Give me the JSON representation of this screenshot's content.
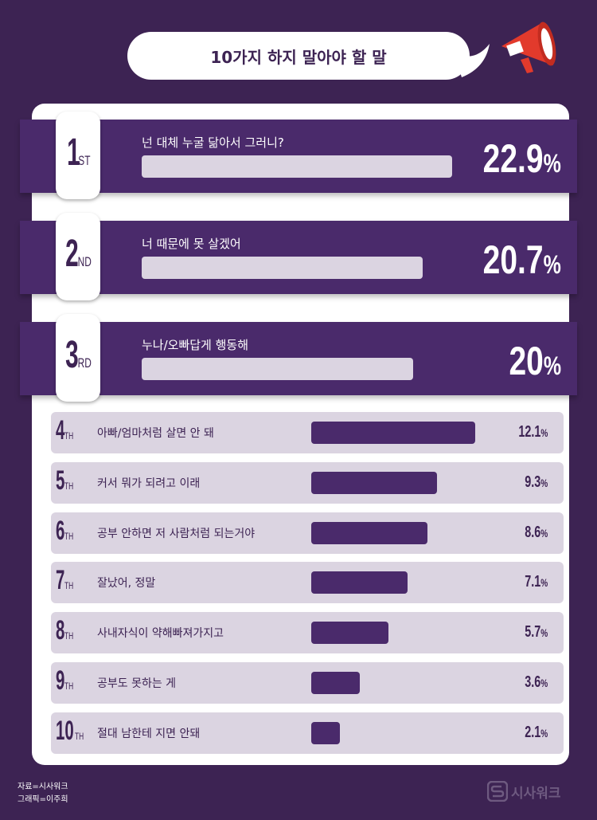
{
  "title": "10가지 하지 말아야 할 말",
  "chart_data": {
    "type": "bar",
    "title": "10가지 하지 말아야 할 말",
    "categories": [
      "넌 대체 누굴 닮아서 그러니?",
      "너 때문에 못 살겠어",
      "누나/오빠답게 행동해",
      "아빠/엄마처럼 살면 안 돼",
      "커서 뭐가 되려고 이래",
      "공부 안하면 저 사람처럼 되는거야",
      "잘났어, 정말",
      "사내자식이 약해빠져가지고",
      "공부도 못하는 게",
      "절대 남한테 지면 안돼"
    ],
    "values": [
      22.9,
      20.7,
      20,
      12.1,
      9.3,
      8.6,
      7.1,
      5.7,
      3.6,
      2.1
    ],
    "unit": "%",
    "colors": {
      "background": "#3d2353",
      "bar_dark": "#4a2a6b",
      "bar_light": "#dbd4e1",
      "accent_red": "#e23a2c"
    }
  },
  "items": [
    {
      "rank_num": "1",
      "rank_suffix": "ST",
      "label": "넌 대체 누굴 닮아서 그러니?",
      "value": 22.9,
      "value_text": "22.9",
      "unit": "%"
    },
    {
      "rank_num": "2",
      "rank_suffix": "ND",
      "label": "너 때문에 못 살겠어",
      "value": 20.7,
      "value_text": "20.7",
      "unit": "%"
    },
    {
      "rank_num": "3",
      "rank_suffix": "RD",
      "label": "누나/오빠답게 행동해",
      "value": 20,
      "value_text": "20",
      "unit": "%"
    },
    {
      "rank_num": "4",
      "rank_suffix": "TH",
      "label": "아빠/엄마처럼 살면 안 돼",
      "value": 12.1,
      "value_text": "12.1",
      "unit": "%"
    },
    {
      "rank_num": "5",
      "rank_suffix": "TH",
      "label": "커서 뭐가 되려고 이래",
      "value": 9.3,
      "value_text": "9.3",
      "unit": "%"
    },
    {
      "rank_num": "6",
      "rank_suffix": "TH",
      "label": "공부 안하면 저 사람처럼 되는거야",
      "value": 8.6,
      "value_text": "8.6",
      "unit": "%"
    },
    {
      "rank_num": "7",
      "rank_suffix": "TH",
      "label": "잘났어, 정말",
      "value": 7.1,
      "value_text": "7.1",
      "unit": "%"
    },
    {
      "rank_num": "8",
      "rank_suffix": "TH",
      "label": "사내자식이 약해빠져가지고",
      "value": 5.7,
      "value_text": "5.7",
      "unit": "%"
    },
    {
      "rank_num": "9",
      "rank_suffix": "TH",
      "label": "공부도 못하는 게",
      "value": 3.6,
      "value_text": "3.6",
      "unit": "%"
    },
    {
      "rank_num": "10",
      "rank_suffix": "TH",
      "label": "절대 남한테 지면 안돼",
      "value": 2.1,
      "value_text": "2.1",
      "unit": "%"
    }
  ],
  "source": "자료=시사워크",
  "graphic": "그래픽=이주희",
  "logo_text": "시사워크",
  "icons": {
    "megaphone": "megaphone-icon",
    "logo": "sisawork-logo-icon"
  }
}
